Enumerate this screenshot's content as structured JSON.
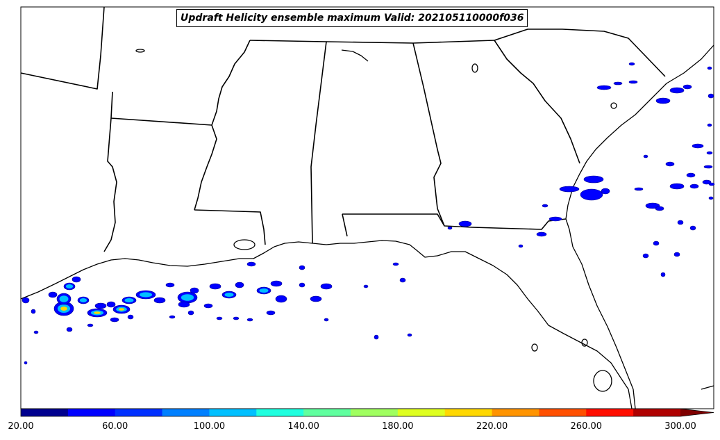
{
  "title": "Updraft Helicity ensemble maximum Valid: 202105110000f036",
  "colorbar": {
    "ticks": [
      "20.00",
      "60.00",
      "100.00",
      "140.00",
      "180.00",
      "220.00",
      "260.00",
      "300.00"
    ],
    "min": 20,
    "max": 300,
    "step": 20,
    "extend": "max",
    "colors": [
      "#00008f",
      "#0000ff",
      "#0030ff",
      "#0080ff",
      "#00c0ff",
      "#20ffdf",
      "#60ff9f",
      "#a0ff60",
      "#dfff20",
      "#ffd800",
      "#ff9400",
      "#ff5000",
      "#ff0e00",
      "#af0000",
      "#7f0000"
    ]
  },
  "colors": {
    "background": "#ffffff",
    "coastline": "#000000",
    "low_helicity": "#0000ff",
    "mid_helicity": "#00c0ff",
    "high_helicity": "#ffd800"
  }
}
